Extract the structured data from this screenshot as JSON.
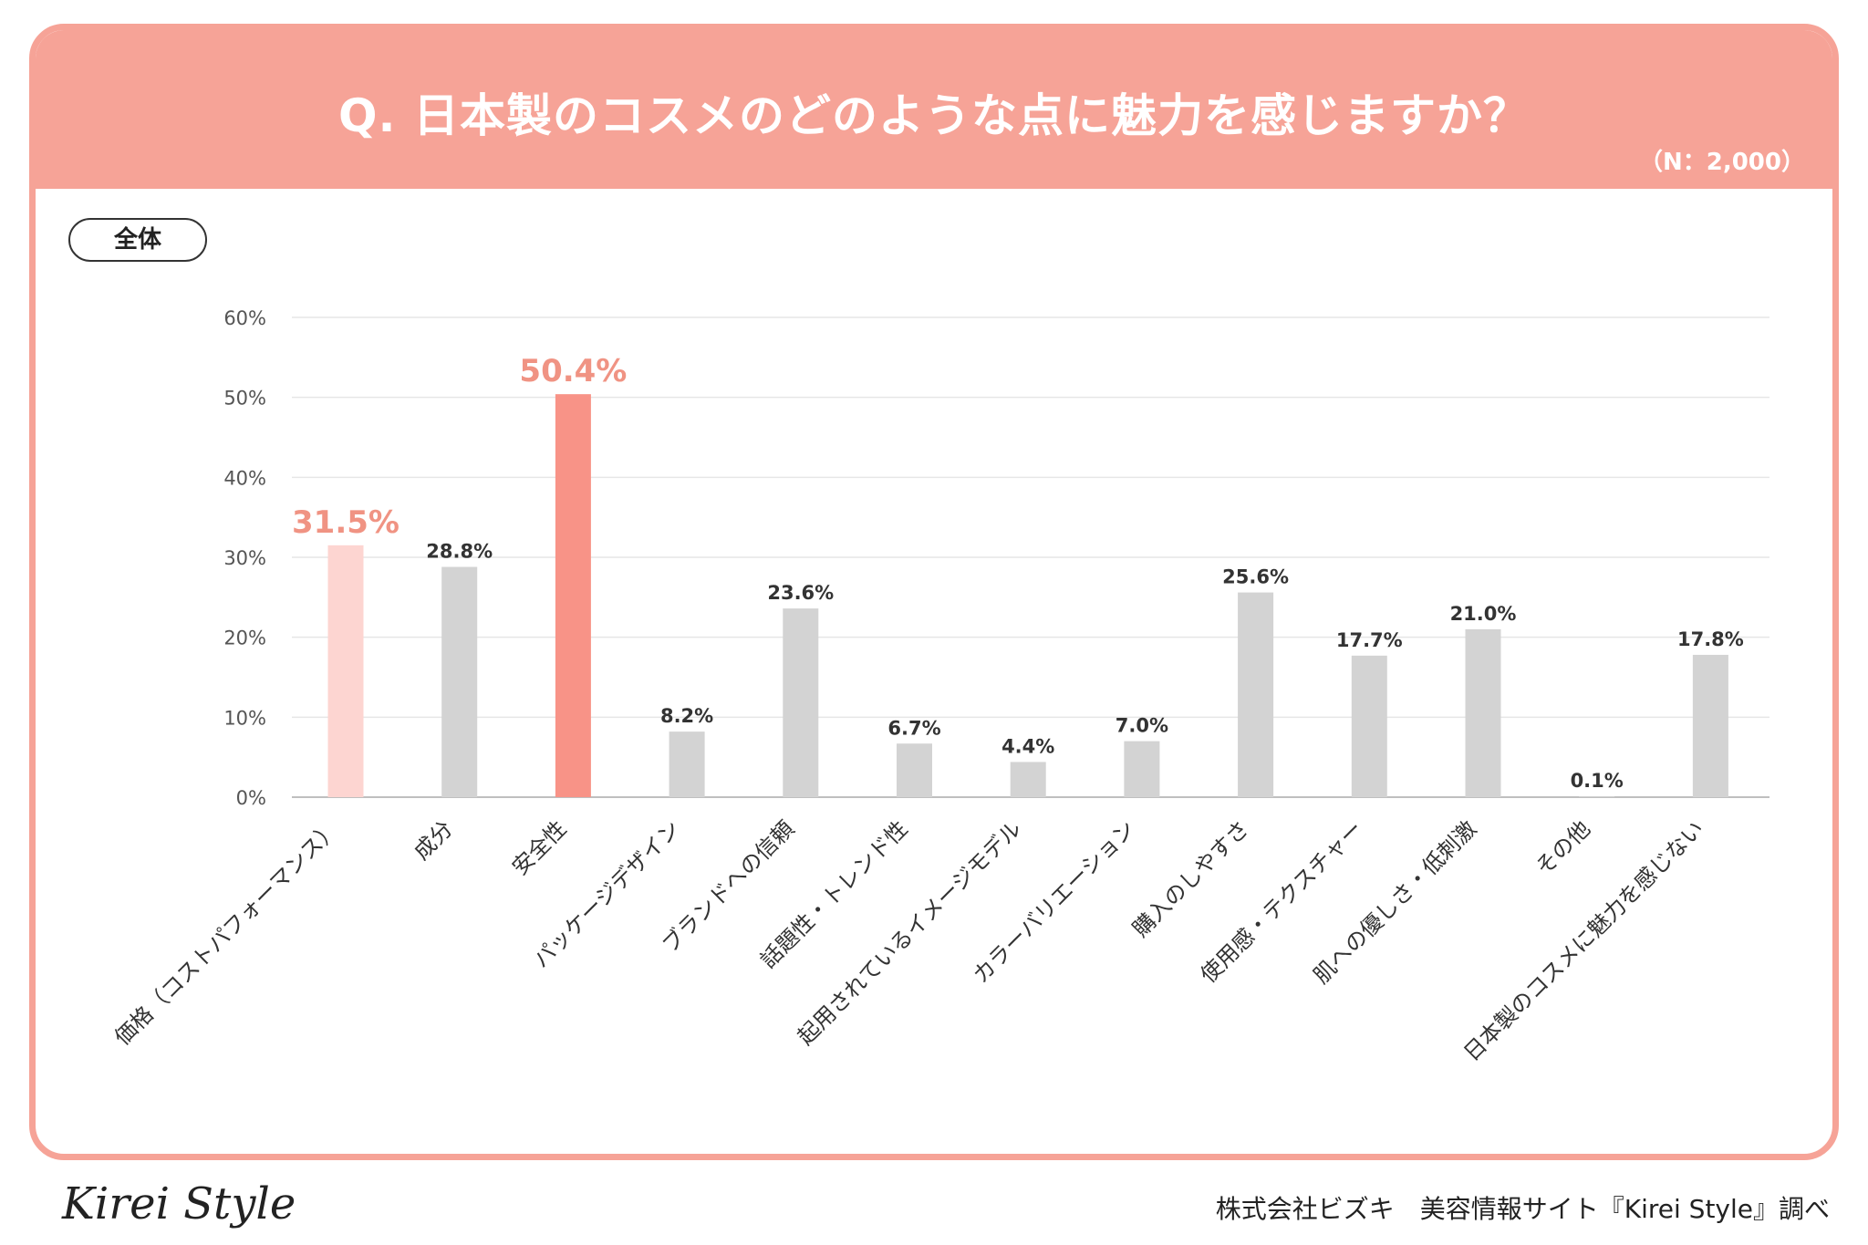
{
  "header": {
    "title": "Q. 日本製のコスメのどのような点に魅力を感じますか？",
    "sample": "（N：2,000）"
  },
  "segment_label": "全体",
  "footer": {
    "logo": "Kirei Style",
    "credit": "株式会社ビズキ　美容情報サイト『Kirei Style』調べ"
  },
  "colors": {
    "accent": "#f6a397",
    "bar_default": "#d3d3d3",
    "bar_top": "#f89387",
    "bar_second": "#fdd5d1",
    "highlight_label": "#f09383",
    "label_default": "#333333"
  },
  "chart_data": {
    "type": "bar",
    "title": "Q. 日本製のコスメのどのような点に魅力を感じますか？",
    "xlabel": "",
    "ylabel": "",
    "ylim": [
      0,
      60
    ],
    "yticks": [
      0,
      10,
      20,
      30,
      40,
      50,
      60
    ],
    "ytick_labels": [
      "0%",
      "10%",
      "20%",
      "30%",
      "40%",
      "50%",
      "60%"
    ],
    "grid": true,
    "categories": [
      "価格（コストパフォーマンス）",
      "成分",
      "安全性",
      "パッケージデザイン",
      "ブランドへの信頼",
      "話題性・トレンド性",
      "起用されているイメージモデル",
      "カラーバリエーション",
      "購入のしやすさ",
      "使用感・テクスチャー",
      "肌への優しさ・低刺激",
      "その他",
      "日本製のコスメに魅力を感じない"
    ],
    "values": [
      31.5,
      28.8,
      50.4,
      8.2,
      23.6,
      6.7,
      4.4,
      7.0,
      25.6,
      17.7,
      21.0,
      0.1,
      17.8
    ],
    "value_labels": [
      "31.5%",
      "28.8%",
      "50.4%",
      "8.2%",
      "23.6%",
      "6.7%",
      "4.4%",
      "7.0%",
      "25.6%",
      "17.7%",
      "21.0%",
      "0.1%",
      "17.8%"
    ],
    "highlight": [
      0,
      2
    ]
  }
}
